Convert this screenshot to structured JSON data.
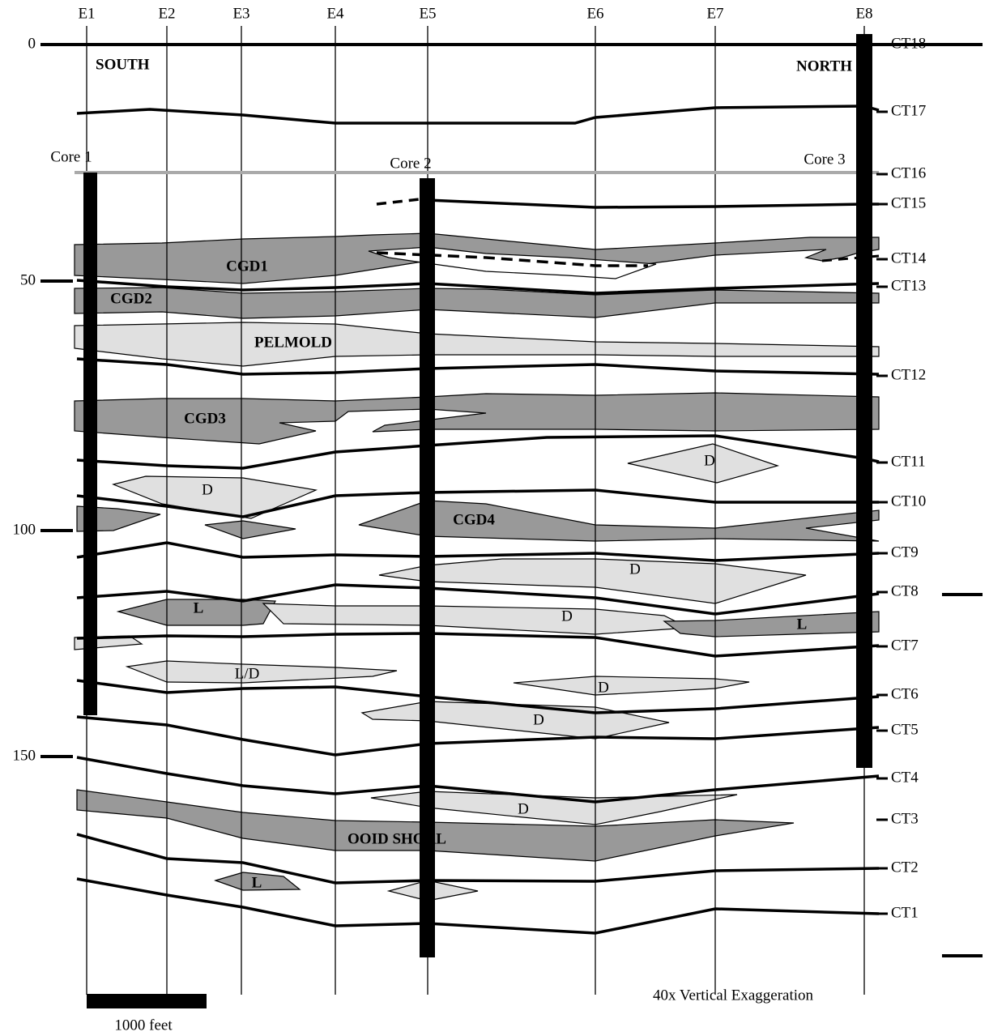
{
  "wells": [
    "E1",
    "E2",
    "E3",
    "E4",
    "E5",
    "E6",
    "E7",
    "E8"
  ],
  "depths": [
    "0",
    "50",
    "100",
    "150"
  ],
  "cycles": [
    "CT18",
    "CT17",
    "CT16",
    "CT15",
    "CT14",
    "CT13",
    "CT12",
    "CT11",
    "CT10",
    "CT9",
    "CT8",
    "CT7",
    "CT6",
    "CT5",
    "CT4",
    "CT3",
    "CT2",
    "CT1"
  ],
  "cores": [
    "Core 1",
    "Core 2",
    "Core 3"
  ],
  "south": "SOUTH",
  "north": "NORTH",
  "units": [
    "CGD1",
    "CGD2",
    "PELMOLD",
    "CGD3",
    "D",
    "CGD4",
    "D",
    "D",
    "L",
    "D",
    "L",
    "L/D",
    "D",
    "D",
    "D",
    "OOID SHOAL",
    "L",
    "D"
  ],
  "scale_bar": "1000 feet",
  "exaggeration": "40x Vertical Exaggeration"
}
